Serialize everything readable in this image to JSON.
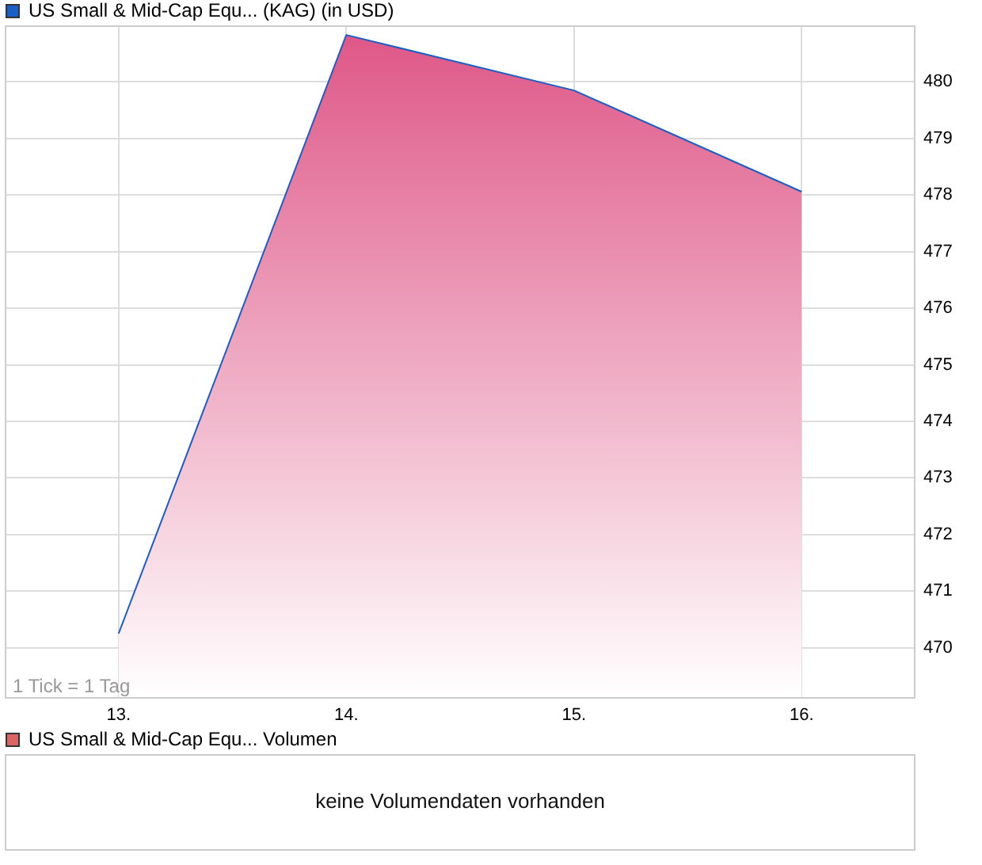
{
  "chart_data": [
    {
      "type": "area",
      "categories": [
        "13.",
        "14.",
        "15.",
        "16."
      ],
      "series": [
        {
          "name": "US Small & Mid-Cap Equ... (KAG) (in USD)",
          "color": "#1a5fc8",
          "values": [
            470.25,
            480.83,
            479.85,
            478.06
          ]
        }
      ],
      "ylim": [
        469.1,
        481.0
      ],
      "yticks": [
        470,
        471,
        472,
        473,
        474,
        475,
        476,
        477,
        478,
        479,
        480
      ],
      "grid": true,
      "legend": "top left",
      "marker": "none",
      "annotations": [
        "1 Tick = 1 Tag"
      ]
    },
    {
      "type": "other",
      "series": [
        {
          "name": "US Small & Mid-Cap Equ... Volumen",
          "color": "#dc6464"
        }
      ],
      "legend": "top left",
      "annotations": [
        "keine Volumendaten vorhanden"
      ]
    }
  ]
}
